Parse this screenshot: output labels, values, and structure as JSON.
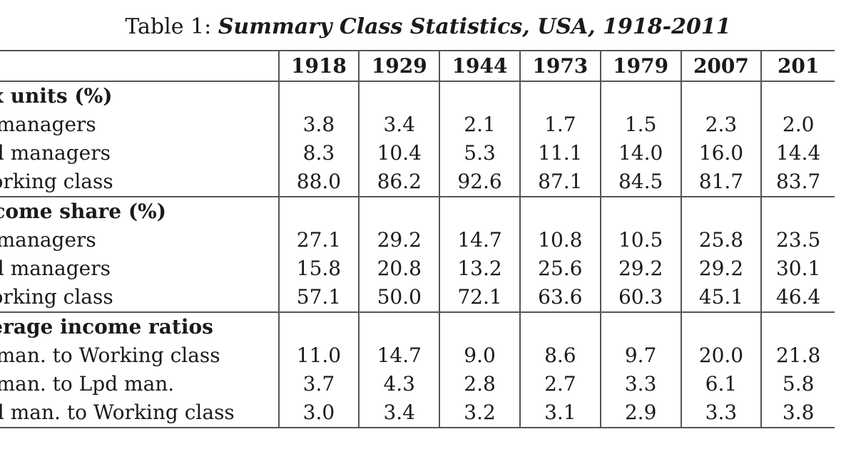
{
  "caption": {
    "prefix": "Table 1:",
    "title": "Summary Class Statistics, USA, 1918-2011"
  },
  "table": {
    "years": [
      "1918",
      "1929",
      "1944",
      "1973",
      "1979",
      "2007",
      "201"
    ],
    "sections": [
      {
        "title": "ax units (%)",
        "rows": [
          {
            "label": "c managers",
            "values": [
              "3.8",
              "3.4",
              "2.1",
              "1.7",
              "1.5",
              "2.3",
              "2.0"
            ]
          },
          {
            "label": "pd managers",
            "values": [
              "8.3",
              "10.4",
              "5.3",
              "11.1",
              "14.0",
              "16.0",
              "14.4"
            ]
          },
          {
            "label": "Vorking class",
            "values": [
              "88.0",
              "86.2",
              "92.6",
              "87.1",
              "84.5",
              "81.7",
              "83.7"
            ]
          }
        ]
      },
      {
        "title": "ncome share (%)",
        "rows": [
          {
            "label": "c managers",
            "values": [
              "27.1",
              "29.2",
              "14.7",
              "10.8",
              "10.5",
              "25.8",
              "23.5"
            ]
          },
          {
            "label": "pd managers",
            "values": [
              "15.8",
              "20.8",
              "13.2",
              "25.6",
              "29.2",
              "29.2",
              "30.1"
            ]
          },
          {
            "label": "Vorking class",
            "values": [
              "57.1",
              "50.0",
              "72.1",
              "63.6",
              "60.3",
              "45.1",
              "46.4"
            ]
          }
        ]
      },
      {
        "title": "verage income ratios",
        "rows": [
          {
            "label": "c man. to Working class",
            "values": [
              "11.0",
              "14.7",
              "9.0",
              "8.6",
              "9.7",
              "20.0",
              "21.8"
            ]
          },
          {
            "label": "c man. to Lpd man.",
            "values": [
              "3.7",
              "4.3",
              "2.8",
              "2.7",
              "3.3",
              "6.1",
              "5.8"
            ]
          },
          {
            "label": "pd man. to Working class",
            "values": [
              "3.0",
              "3.4",
              "3.2",
              "3.1",
              "2.9",
              "3.3",
              "3.8"
            ]
          }
        ]
      }
    ]
  }
}
